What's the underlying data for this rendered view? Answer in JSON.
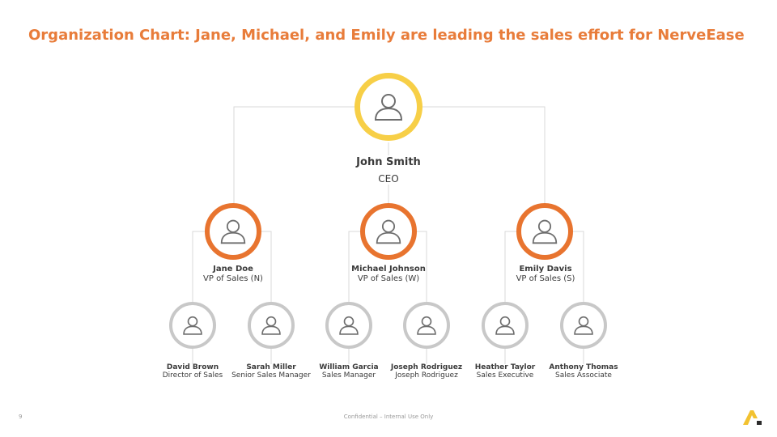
{
  "title": "Organization Chart: Jane, Michael, and Emily are leading the sales effort for NerveEase",
  "colors": {
    "title": "#e87c3a",
    "ceo_ring": "#f7cf47",
    "vp_ring": "#e8742f",
    "staff_ring": "#c8c8c8",
    "connector": "#d9d9d9"
  },
  "ceo": {
    "name": "John Smith",
    "role": "CEO",
    "icon": "person-icon"
  },
  "vps": [
    {
      "name": "Jane Doe",
      "role": "VP of Sales (N)",
      "icon": "person-icon"
    },
    {
      "name": "Michael Johnson",
      "role": "VP of Sales (W)",
      "icon": "person-icon"
    },
    {
      "name": "Emily Davis",
      "role": "VP of Sales (S)",
      "icon": "person-icon"
    }
  ],
  "staff": [
    {
      "name": "David Brown",
      "role": "Director of Sales",
      "icon": "person-icon"
    },
    {
      "name": "Sarah Miller",
      "role": "Senior Sales Manager",
      "icon": "person-icon"
    },
    {
      "name": "William Garcia",
      "role": "Sales Manager",
      "icon": "person-icon"
    },
    {
      "name": "Joseph Rodriguez",
      "role": "Joseph Rodriguez",
      "icon": "person-icon"
    },
    {
      "name": "Heather Taylor",
      "role": "Sales Executive",
      "icon": "person-icon"
    },
    {
      "name": "Anthony Thomas",
      "role": "Sales Associate",
      "icon": "person-icon"
    }
  ],
  "footer": {
    "page_number": "9",
    "confidential": "Confidential – Internal Use Only",
    "logo_icon": "brand-logo-icon"
  }
}
